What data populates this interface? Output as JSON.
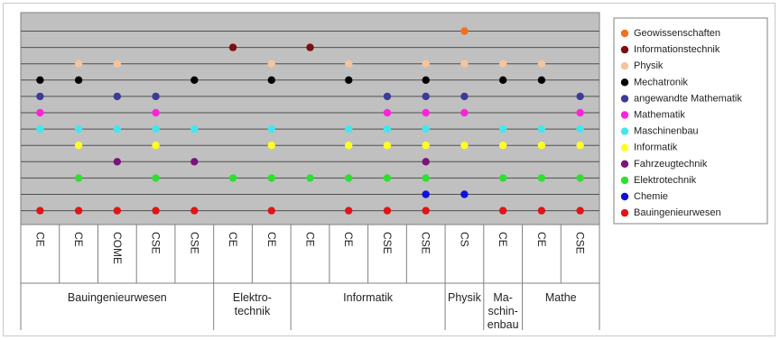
{
  "chart_data": {
    "type": "scatter",
    "categories": [
      "CE",
      "CE",
      "COME",
      "CSE",
      "CSE",
      "CE",
      "CE",
      "CE",
      "CE",
      "CSE",
      "CSE",
      "CS",
      "CE",
      "CE",
      "CSE"
    ],
    "groups": [
      {
        "label": [
          "Bauingenieurwesen"
        ],
        "span": 5
      },
      {
        "label": [
          "Elektro-",
          "technik"
        ],
        "span": 2
      },
      {
        "label": [
          "Informatik"
        ],
        "span": 4
      },
      {
        "label": [
          "Physik"
        ],
        "span": 1
      },
      {
        "label": [
          "Ma-",
          "schin-",
          "enbau"
        ],
        "span": 1
      },
      {
        "label": [
          "Mathe"
        ],
        "span": 2
      }
    ],
    "series": [
      {
        "name": "Geowissenschaften",
        "color": "#f07020",
        "columns": [
          12
        ]
      },
      {
        "name": "Informationstechnik",
        "color": "#7a0f0f",
        "columns": [
          6,
          8
        ]
      },
      {
        "name": "Physik",
        "color": "#f5c49c",
        "columns": [
          2,
          3,
          7,
          9,
          11,
          12,
          13,
          14
        ]
      },
      {
        "name": "Mechatronik",
        "color": "#000000",
        "columns": [
          1,
          2,
          5,
          7,
          9,
          11,
          13,
          14
        ]
      },
      {
        "name": "angewandte Mathematik",
        "color": "#3b3b9a",
        "columns": [
          1,
          3,
          4,
          10,
          11,
          12,
          15
        ]
      },
      {
        "name": "Mathematik",
        "color": "#ff22dd",
        "columns": [
          1,
          4,
          10,
          11,
          12,
          15
        ]
      },
      {
        "name": "Maschinenbau",
        "color": "#44e6ee",
        "columns": [
          1,
          2,
          3,
          4,
          5,
          7,
          9,
          10,
          11,
          13,
          14,
          15
        ]
      },
      {
        "name": "Informatik",
        "color": "#ffff22",
        "columns": [
          2,
          4,
          7,
          9,
          10,
          11,
          12,
          13,
          14,
          15
        ]
      },
      {
        "name": "Fahrzeugtechnik",
        "color": "#7a137a",
        "columns": [
          3,
          5,
          11
        ]
      },
      {
        "name": "Elektrotechnik",
        "color": "#2ee02e",
        "columns": [
          2,
          4,
          6,
          7,
          8,
          9,
          10,
          11,
          13,
          14,
          15
        ]
      },
      {
        "name": "Chemie",
        "color": "#1010dd",
        "columns": [
          11,
          12
        ]
      },
      {
        "name": "Bauingenieurwesen",
        "color": "#e01515",
        "columns": [
          1,
          2,
          3,
          4,
          5,
          7,
          9,
          10,
          11,
          13,
          14,
          15
        ]
      }
    ],
    "grid": true,
    "legend": "right",
    "plot_background": "#c0c0c0"
  }
}
